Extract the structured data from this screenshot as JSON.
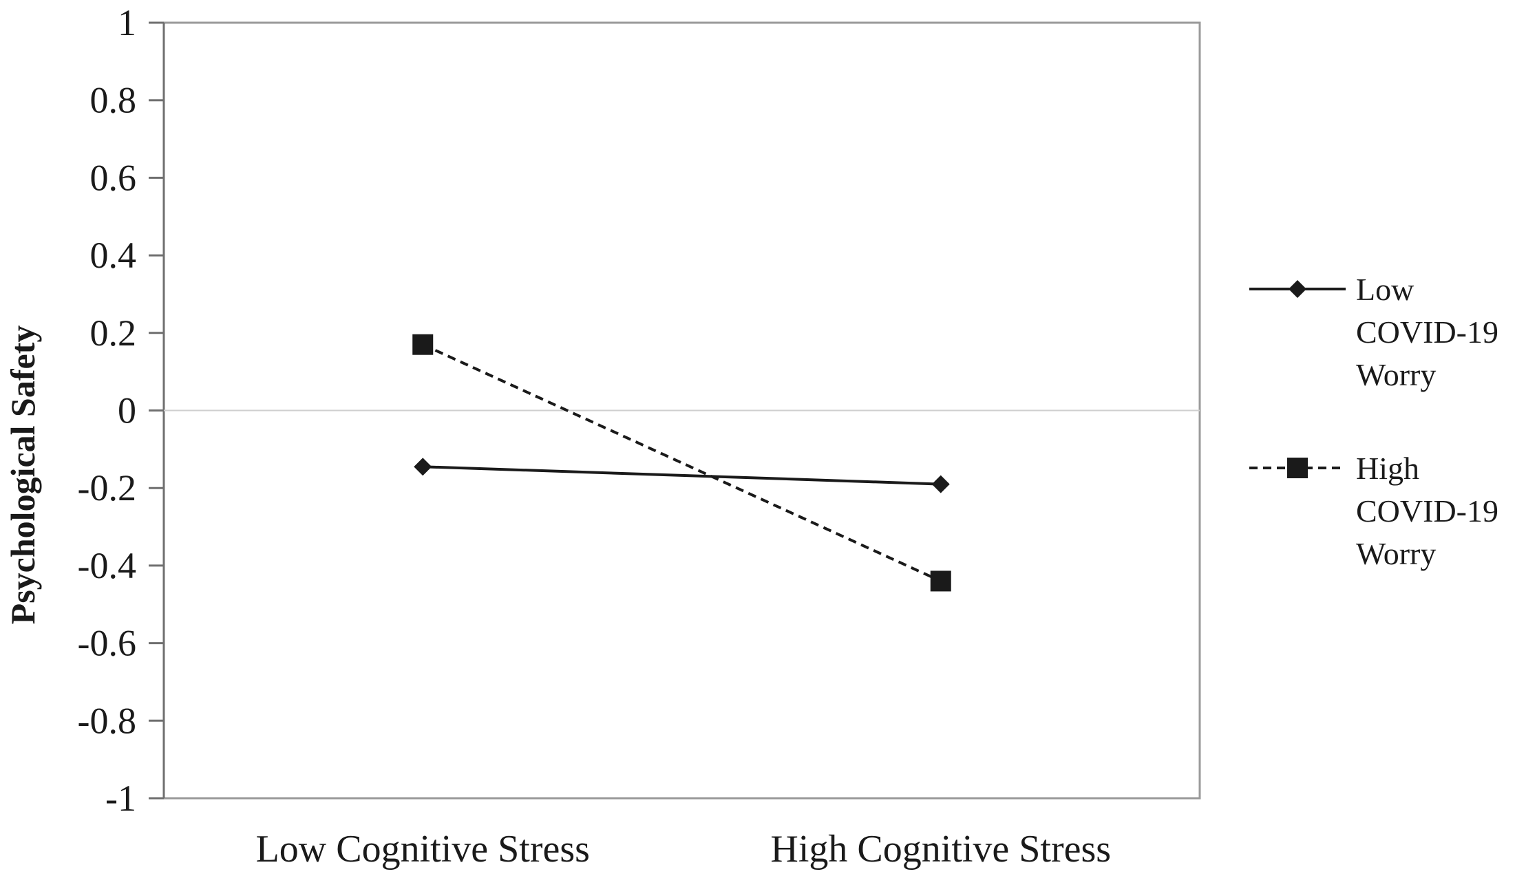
{
  "chart_data": {
    "type": "line",
    "title": "",
    "xlabel": "",
    "ylabel": "Psychological Safety",
    "categories": [
      "Low Cognitive Stress",
      "High Cognitive Stress"
    ],
    "ylim": [
      -1,
      1
    ],
    "yticks": [
      1,
      0.8,
      0.6,
      0.4,
      0.2,
      0,
      -0.2,
      -0.4,
      -0.6,
      -0.8,
      -1
    ],
    "ytick_labels": [
      "1",
      "0.8",
      "0.6",
      "0.4",
      "0.2",
      "0",
      "-0.2",
      "-0.4",
      "-0.6",
      "-0.8",
      "-1"
    ],
    "grid": false,
    "legend_position": "right",
    "series": [
      {
        "name_lines": [
          "Low",
          "COVID-19",
          "Worry"
        ],
        "values": [
          -0.145,
          -0.19
        ],
        "marker": "diamond",
        "line_style": "solid",
        "color": "#1a1a1a"
      },
      {
        "name_lines": [
          "High",
          "COVID-19",
          "Worry"
        ],
        "values": [
          0.17,
          -0.44
        ],
        "marker": "square",
        "line_style": "dashed",
        "color": "#1a1a1a"
      }
    ]
  }
}
